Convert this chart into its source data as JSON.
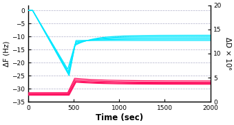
{
  "xlabel": "Time (sec)",
  "ylabel_left": "ΔF (Hz)",
  "ylabel_right": "ΔD × 10⁶",
  "xlim": [
    0,
    2000
  ],
  "ylim_left": [
    -35,
    2
  ],
  "ylim_right": [
    0,
    20
  ],
  "yticks_left": [
    0,
    -5,
    -10,
    -15,
    -20,
    -25,
    -30,
    -35
  ],
  "yticks_right": [
    0,
    5,
    10,
    15,
    20
  ],
  "xticks": [
    0,
    500,
    1000,
    1500,
    2000
  ],
  "background_color": "#ffffff",
  "grid_color": "#9999bb",
  "cyan_color": "#00e8ff",
  "red_color": "#ff1060",
  "cyan_curves": [
    {
      "t0": 0,
      "t_drop_start": 50,
      "t_dip": 435,
      "dip_val": -22.5,
      "t_recover": 510,
      "recover_val": -13.5,
      "final_val": -9.5,
      "tau": 200
    },
    {
      "t0": 0,
      "t_drop_start": 50,
      "t_dip": 440,
      "dip_val": -23.5,
      "t_recover": 515,
      "recover_val": -13.0,
      "final_val": -10.0,
      "tau": 200
    },
    {
      "t0": 0,
      "t_drop_start": 50,
      "t_dip": 445,
      "dip_val": -24.0,
      "t_recover": 520,
      "recover_val": -12.5,
      "final_val": -10.5,
      "tau": 200
    },
    {
      "t0": 0,
      "t_drop_start": 50,
      "t_dip": 448,
      "dip_val": -24.5,
      "t_recover": 522,
      "recover_val": -12.0,
      "final_val": -11.0,
      "tau": 200
    },
    {
      "t0": 0,
      "t_drop_start": 50,
      "t_dip": 450,
      "dip_val": -25.0,
      "t_recover": 525,
      "recover_val": -11.5,
      "final_val": -11.5,
      "tau": 200
    }
  ],
  "red_curves": [
    {
      "flat_val": -31.5,
      "t_jump": 435,
      "t_recover": 510,
      "jump_val": -26.0,
      "final_val": -27.0,
      "tau": 300
    },
    {
      "flat_val": -31.8,
      "t_jump": 440,
      "t_recover": 515,
      "jump_val": -26.5,
      "final_val": -27.5,
      "tau": 300
    },
    {
      "flat_val": -32.0,
      "t_jump": 445,
      "t_recover": 520,
      "jump_val": -27.0,
      "final_val": -27.8,
      "tau": 300
    },
    {
      "flat_val": -32.2,
      "t_jump": 448,
      "t_recover": 522,
      "jump_val": -27.3,
      "final_val": -28.0,
      "tau": 300
    },
    {
      "flat_val": -32.5,
      "t_jump": 450,
      "t_recover": 525,
      "jump_val": -27.5,
      "final_val": -28.3,
      "tau": 300
    }
  ]
}
